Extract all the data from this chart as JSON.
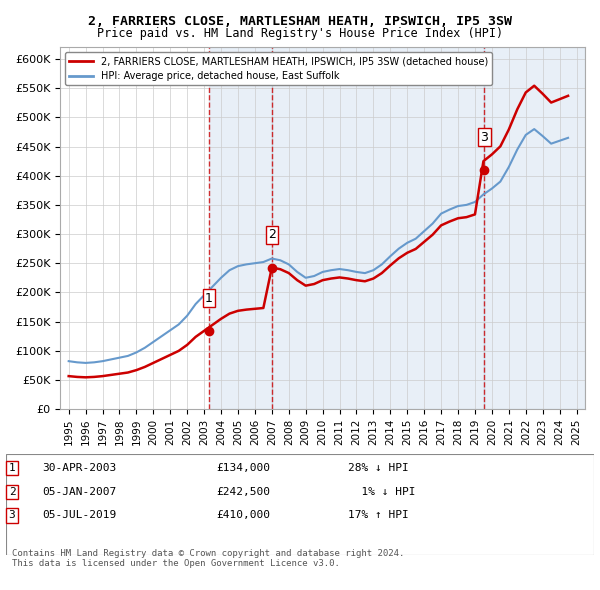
{
  "title": "2, FARRIERS CLOSE, MARTLESHAM HEATH, IPSWICH, IP5 3SW",
  "subtitle": "Price paid vs. HM Land Registry's House Price Index (HPI)",
  "transactions": [
    {
      "date": "2003-04-30",
      "price": 134000,
      "label": "1"
    },
    {
      "date": "2007-01-05",
      "price": 242500,
      "label": "2"
    },
    {
      "date": "2019-07-05",
      "price": 410000,
      "label": "3"
    }
  ],
  "transaction_labels": [
    "30-APR-2003   £134,000   28% ↓ HPI",
    "05-JAN-2007   £242,500     1% ↓ HPI",
    "05-JUL-2019   £410,000   17% ↑ HPI"
  ],
  "legend_line1": "2, FARRIERS CLOSE, MARTLESHAM HEATH, IPSWICH, IP5 3SW (detached house)",
  "legend_line2": "HPI: Average price, detached house, East Suffolk",
  "footer": "Contains HM Land Registry data © Crown copyright and database right 2024.\nThis data is licensed under the Open Government Licence v3.0.",
  "sold_color": "#cc0000",
  "hpi_color": "#6699cc",
  "background_color": "#ffffff",
  "grid_color": "#cccccc",
  "ylim": [
    0,
    620000
  ],
  "xlabel": "",
  "ylabel": ""
}
